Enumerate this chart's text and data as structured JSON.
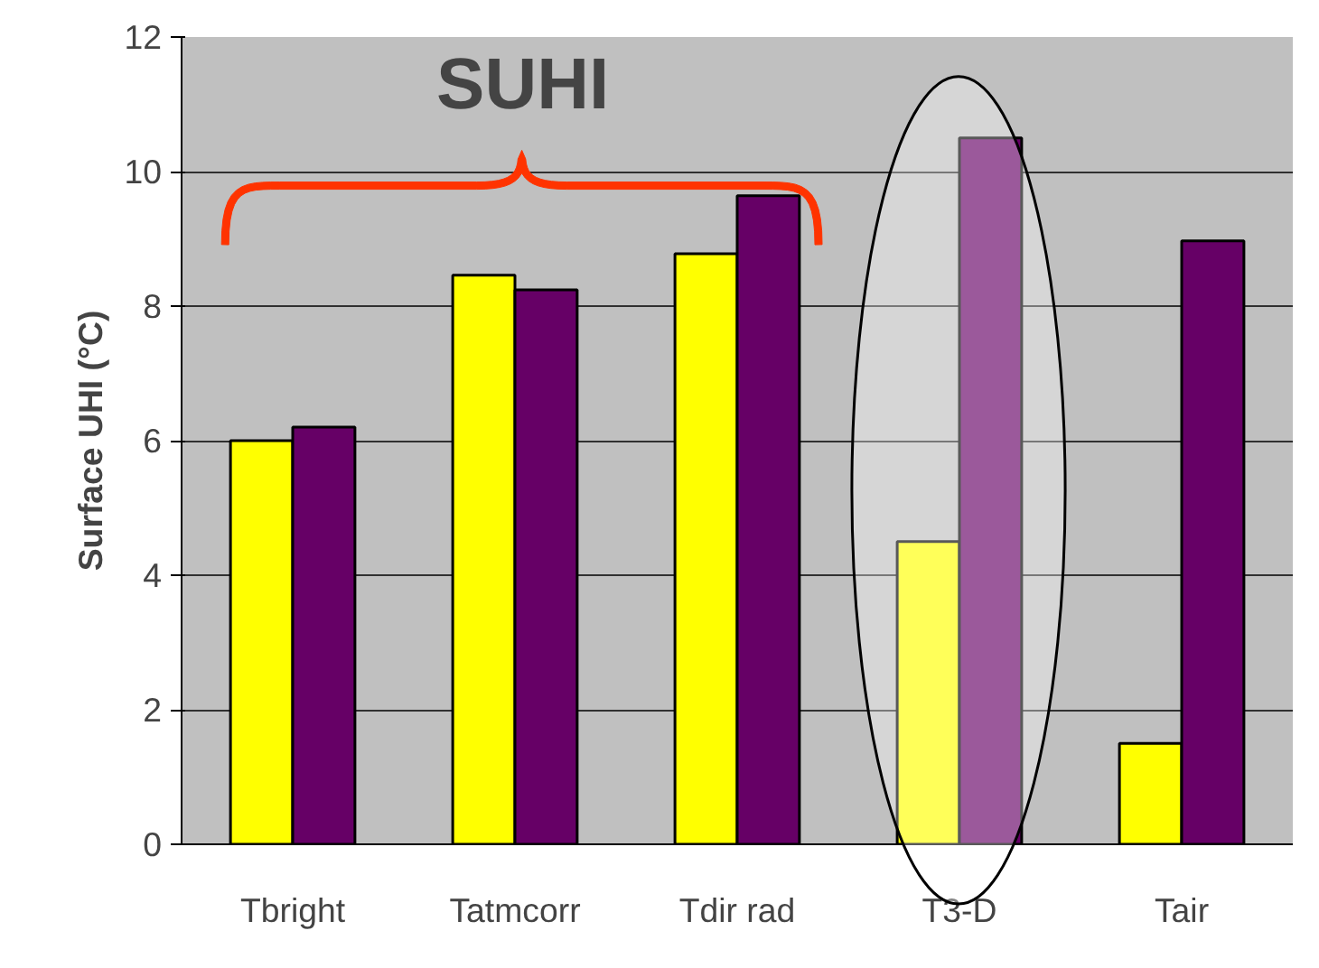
{
  "chart_data": {
    "type": "bar",
    "ylabel": "Surface UHI (°C)",
    "categories": [
      "Tbright",
      "Tatmcorr",
      "Tdir rad",
      "T3-D",
      "Tair"
    ],
    "series": [
      {
        "color": "#ffff00",
        "values": [
          6.0,
          8.46,
          8.78,
          4.5,
          1.5
        ]
      },
      {
        "color": "#660066",
        "values": [
          6.2,
          8.24,
          9.64,
          10.5,
          8.97
        ]
      }
    ],
    "ylim": [
      0,
      12
    ],
    "yticks": [
      0,
      2,
      4,
      6,
      8,
      10,
      12
    ],
    "grid": "y",
    "annotations": [
      "SUHI"
    ]
  }
}
